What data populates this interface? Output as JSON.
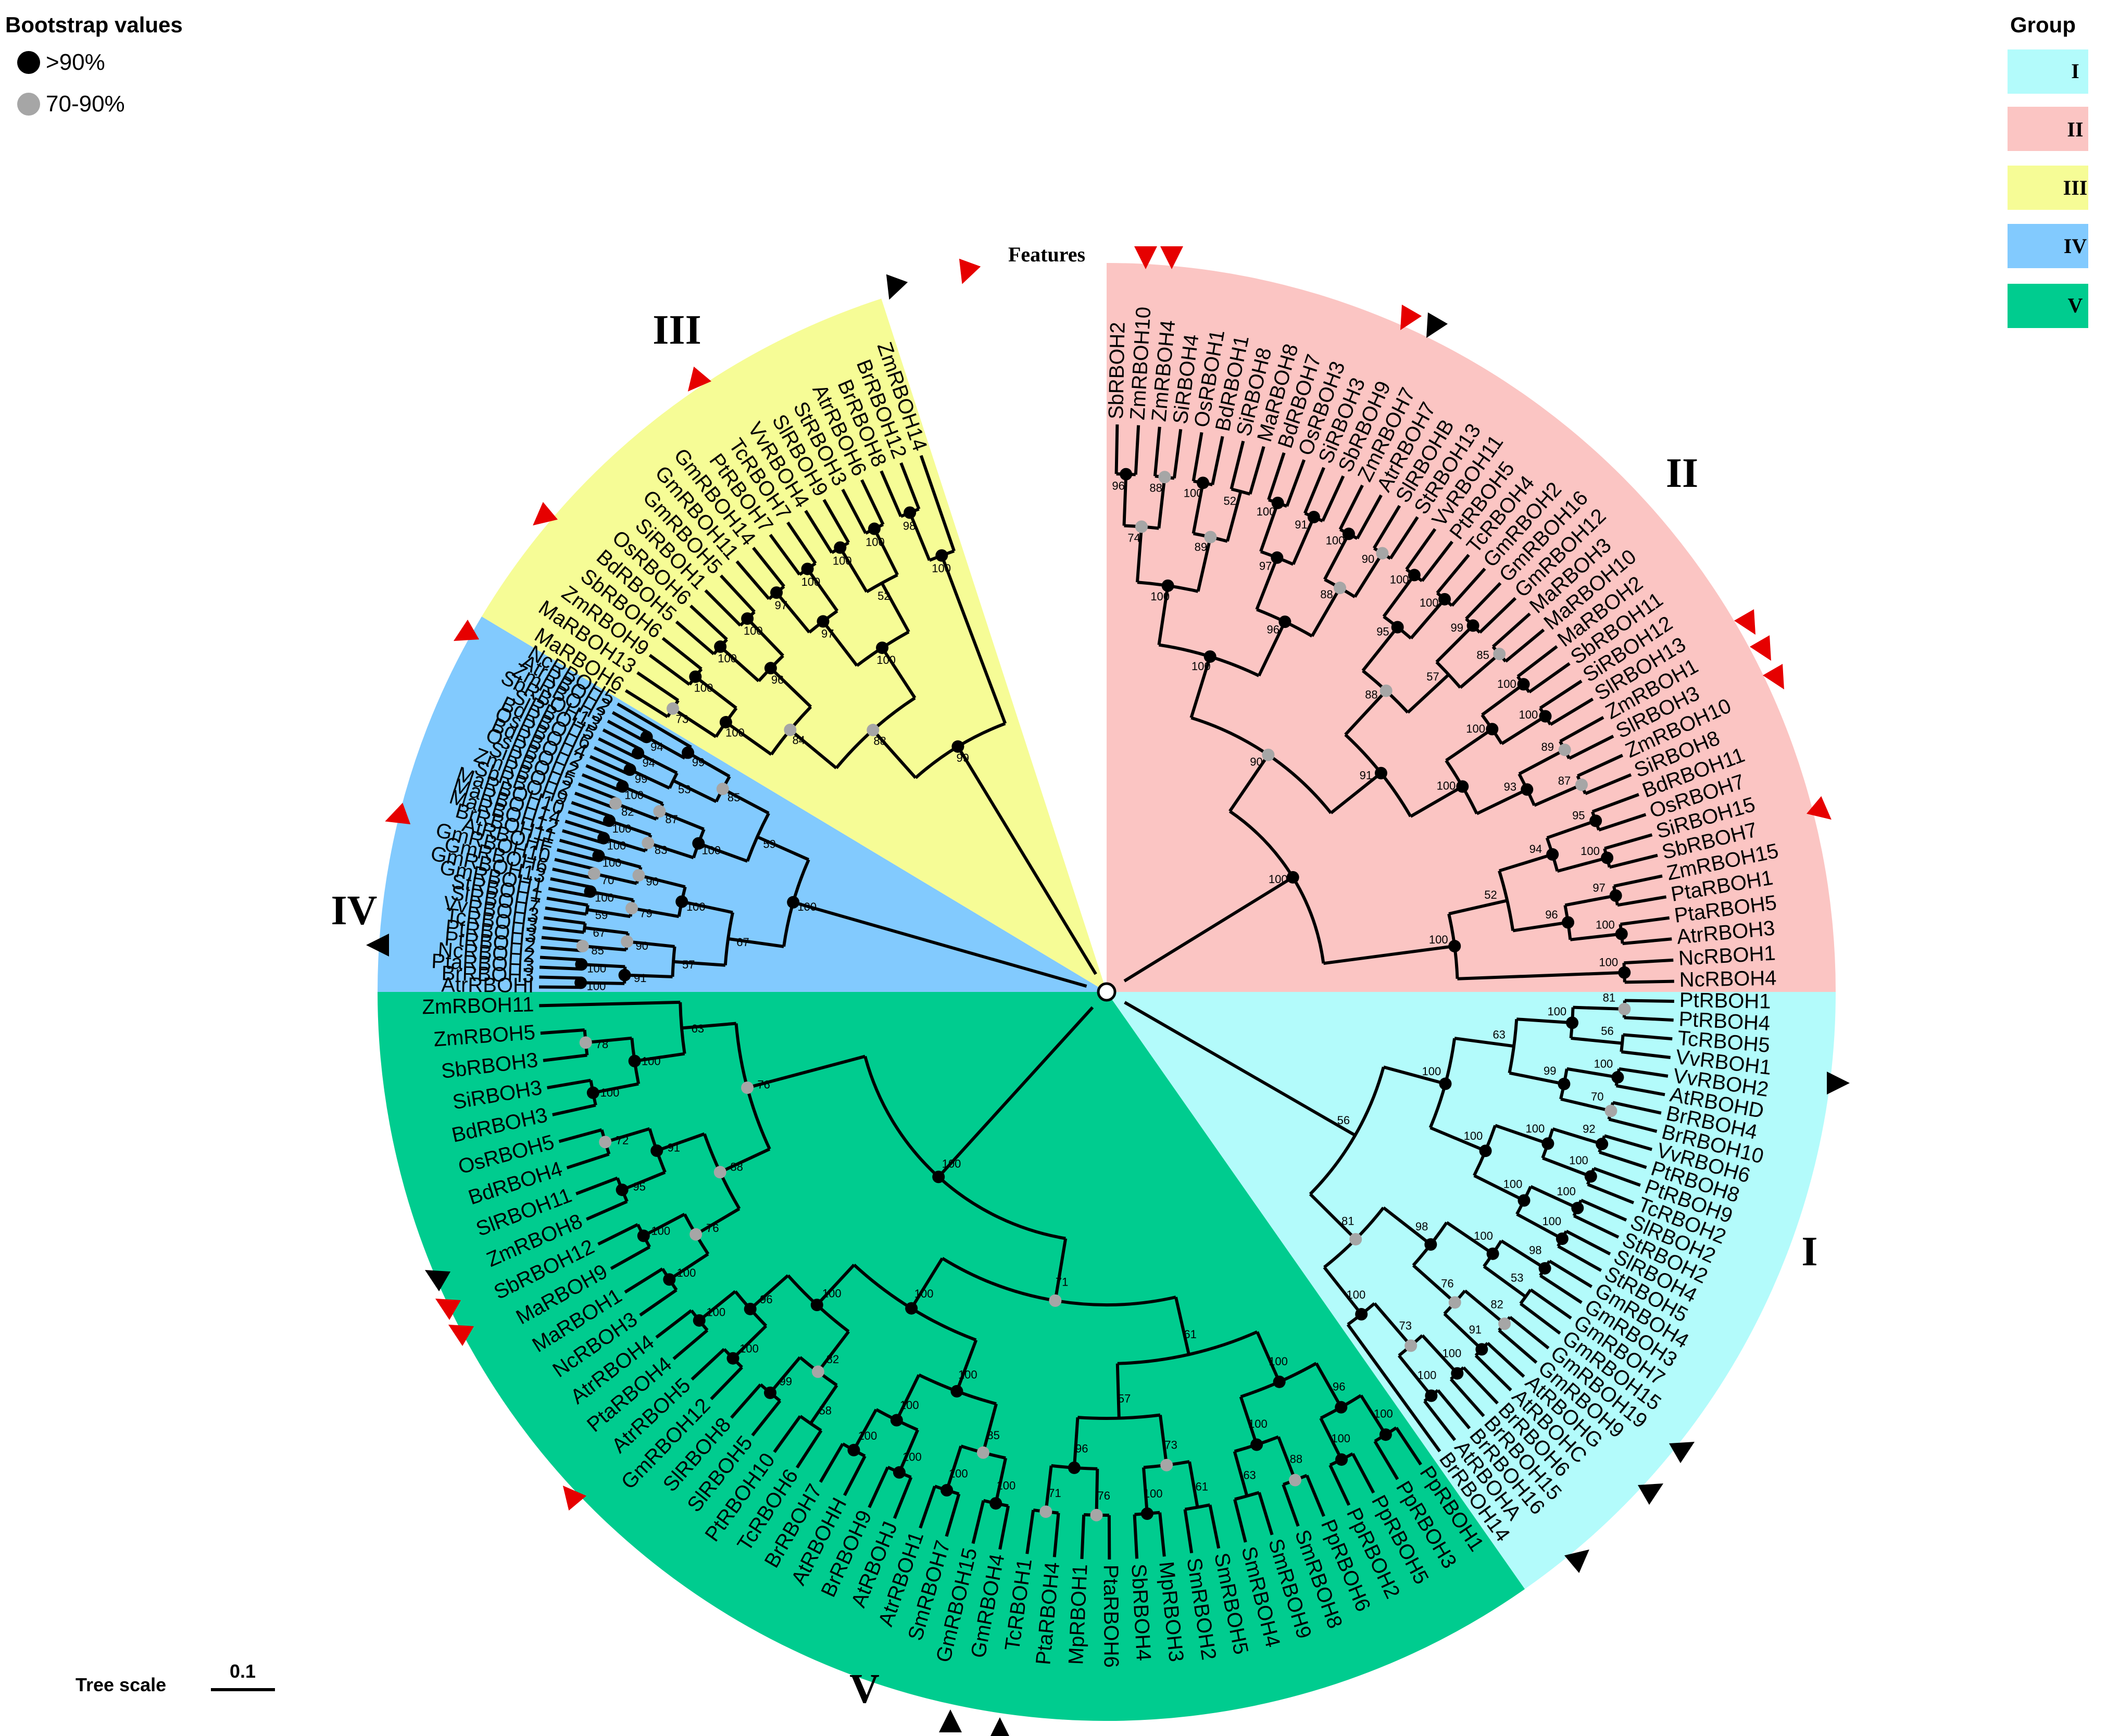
{
  "bootstrap_legend": {
    "title": "Bootstrap values",
    "items": [
      {
        "label": ">90%",
        "color": "#000000"
      },
      {
        "label": "70-90%",
        "color": "#a6a6a6"
      }
    ]
  },
  "group_legend": {
    "title": "Group",
    "items": [
      {
        "label": "I",
        "color": "#b3fbfb"
      },
      {
        "label": "II",
        "color": "#fbc5c3"
      },
      {
        "label": "III",
        "color": "#f6fc96"
      },
      {
        "label": "IV",
        "color": "#82cafe"
      },
      {
        "label": "V",
        "color": "#00cc8f"
      }
    ]
  },
  "features_label": "Features",
  "tree_scale": {
    "label": "Tree scale",
    "value": "0.1"
  },
  "groups": [
    {
      "name": "II",
      "color": "#fbc5c3",
      "leaves": [
        "SbRBOH2",
        "ZmRBOH10",
        "ZmRBOH4",
        "SiRBOH4",
        "OsRBOH1",
        "BdRBOH1",
        "SiRBOH8",
        "MaRBOH8",
        "BdRBOH7",
        "OsRBOH3",
        "SiRBOH3",
        "SbRBOH9",
        "ZmRBOH7",
        "AtrRBOH7",
        "SlRBOHB",
        "StRBOH13",
        "VvRBOH11",
        "PtRBOH5",
        "TcRBOH4",
        "GmRBOH2",
        "GmRBOH16",
        "GmRBOH12",
        "MaRBOH3",
        "MaRBOH10",
        "MaRBOH2",
        "SbRBOH11",
        "SiRBOH12",
        "SlRBOH13",
        "ZmRBOH1",
        "SlRBOH3",
        "ZmRBOH10",
        "SiRBOH8",
        "BdRBOH11",
        "OsRBOH7",
        "SiRBOH15",
        "SbRBOH7",
        "ZmRBOH15",
        "PtaRBOH1",
        "PtaRBOH5",
        "AtrRBOH3",
        "NcRBOH1",
        "NcRBOH4"
      ],
      "bootstrap": [
        "96",
        "88",
        "100",
        "52",
        "100",
        "91",
        "100",
        "90",
        "100",
        "100",
        "99",
        "85",
        "100",
        "100",
        "89",
        "87",
        "95",
        "100",
        "97",
        "100",
        "100",
        "74",
        "89",
        "97",
        "88",
        "95",
        "57",
        "100",
        "93",
        "94",
        "96",
        "100"
      ]
    },
    {
      "name": "I",
      "color": "#b3fbfb",
      "leaves": [
        "PtRBOH1",
        "PtRBOH4",
        "TcRBOH5",
        "VvRBOH1",
        "VvRBOH2",
        "AtRBOHD",
        "BrRBOH4",
        "BrRBOH10",
        "VvRBOH6",
        "PtRBOH8",
        "PtRBOH9",
        "TcRBOH2",
        "SlRBOH2",
        "StRBOH2",
        "SlRBOH4",
        "StRBOH5",
        "GmRBOH4",
        "GmRBOH3",
        "GmRBOH7",
        "GmRBOH15",
        "GmRBOH19",
        "GmRBOH9",
        "AtRBOHG",
        "AtRBOHC",
        "BrRBOH6",
        "BrRBOH15",
        "BrRBOH16",
        "AtRBOHA",
        "BrRBOH14"
      ],
      "bootstrap": [
        "81",
        "56",
        "100",
        "70",
        "92",
        "100",
        "100",
        "100",
        "98",
        "53",
        "82",
        "91",
        "100",
        "100",
        "100",
        "99",
        "100",
        "100",
        "100",
        "76",
        "73",
        "63",
        "100",
        "98",
        "100",
        "100"
      ]
    },
    {
      "name": "V",
      "color": "#00cc8f",
      "leaves": [
        "PpRBOH1",
        "PpRBOH3",
        "PpRBOH5",
        "PpRBOH2",
        "PpRBOH6",
        "SmRBOH8",
        "SmRBOH9",
        "SmRBOH4",
        "SmRBOH5",
        "SmRBOH2",
        "MpRBOH3",
        "SbRBOH4",
        "PtaRBOH6",
        "MpRBOH1",
        "PtaRBOH4",
        "TcRBOH1",
        "GmRBOH4",
        "GmRBOH15",
        "SmRBOH7",
        "AtrRBOH1",
        "AtRBOHJ",
        "BrRBOH9",
        "AtRBOHH",
        "BrRBOH7",
        "TcRBOH6",
        "PtRBOH10",
        "SlRBOH5",
        "SlRBOH8",
        "GmRBOH12",
        "AtrRBOH5",
        "PtaRBOH4",
        "AtrRBOH4",
        "NcRBOH3",
        "MaRBOH1",
        "MaRBOH9",
        "SbRBOH12",
        "ZmRBOH8",
        "SlRBOH11",
        "BdRBOH4",
        "OsRBOH5",
        "BdRBOH3",
        "SiRBOH3",
        "SbRBOH3",
        "ZmRBOH5",
        "ZmRBOH11"
      ],
      "bootstrap": [
        "100",
        "100",
        "88",
        "63",
        "61",
        "100",
        "76",
        "71",
        "100",
        "100",
        "100",
        "100",
        "58",
        "99",
        "100",
        "100",
        "100",
        "100",
        "95",
        "72",
        "100",
        "78",
        "96",
        "100",
        "73",
        "96",
        "85",
        "100",
        "82",
        "96",
        "76",
        "91",
        "100",
        "100",
        "57"
      ]
    },
    {
      "name": "IV",
      "color": "#82cafe",
      "leaves": [
        "AtrRBOHI",
        "BrRBOH3",
        "PtaRBOH3",
        "NcRBOH2",
        "PtRBOH2",
        "PtRBOH3",
        "TcRBOH3",
        "VvRBOH3",
        "SlRBOH7",
        "StRBOH1",
        "GmRBOH1",
        "GmRBOH13",
        "GmRBOH6",
        "GmRBOH10",
        "AtRBOHF",
        "BrRBOH11",
        "MaRBOH12",
        "MaRBOH14",
        "MaRBOH10",
        "SbRBOH9",
        "ZmRBOH2",
        "SiRBOH5",
        "OsRBOH2",
        "BdRBOH2",
        "OsRBOH4",
        "BdRBOH6",
        "SiRBOH5",
        "SbRBOH13",
        "ZmRBOH3",
        "AtrRBOH2",
        "NcRBOH5"
      ],
      "bootstrap": [
        "100",
        "100",
        "85",
        "67",
        "59",
        "100",
        "70",
        "100",
        "100",
        "100",
        "82",
        "100",
        "99",
        "94",
        "94",
        "91",
        "90",
        "79",
        "90",
        "83",
        "87",
        "53",
        "99",
        "57"
      ]
    },
    {
      "name": "III",
      "color": "#f6fc96",
      "leaves": [
        "MaRBOH6",
        "MaRBOH13",
        "ZmRBOH9",
        "SbRBOH6",
        "BdRBOH5",
        "OsRBOH6",
        "SiRBOH1",
        "GmRBOH5",
        "GmRBOH11",
        "GmRBOH14",
        "PtRBOH7",
        "TcRBOH7",
        "VvRBOH4",
        "SlRBOH9",
        "StRBOH3",
        "AtrRBOH6",
        "BrRBOH8",
        "BrRBOH12",
        "ZmRBOH14"
      ],
      "bootstrap": [
        "73",
        "100",
        "100",
        "100",
        "97",
        "100",
        "100",
        "100",
        "98",
        "100",
        "96",
        "97",
        "52",
        "100",
        "84",
        "100",
        "88",
        "99"
      ]
    }
  ]
}
